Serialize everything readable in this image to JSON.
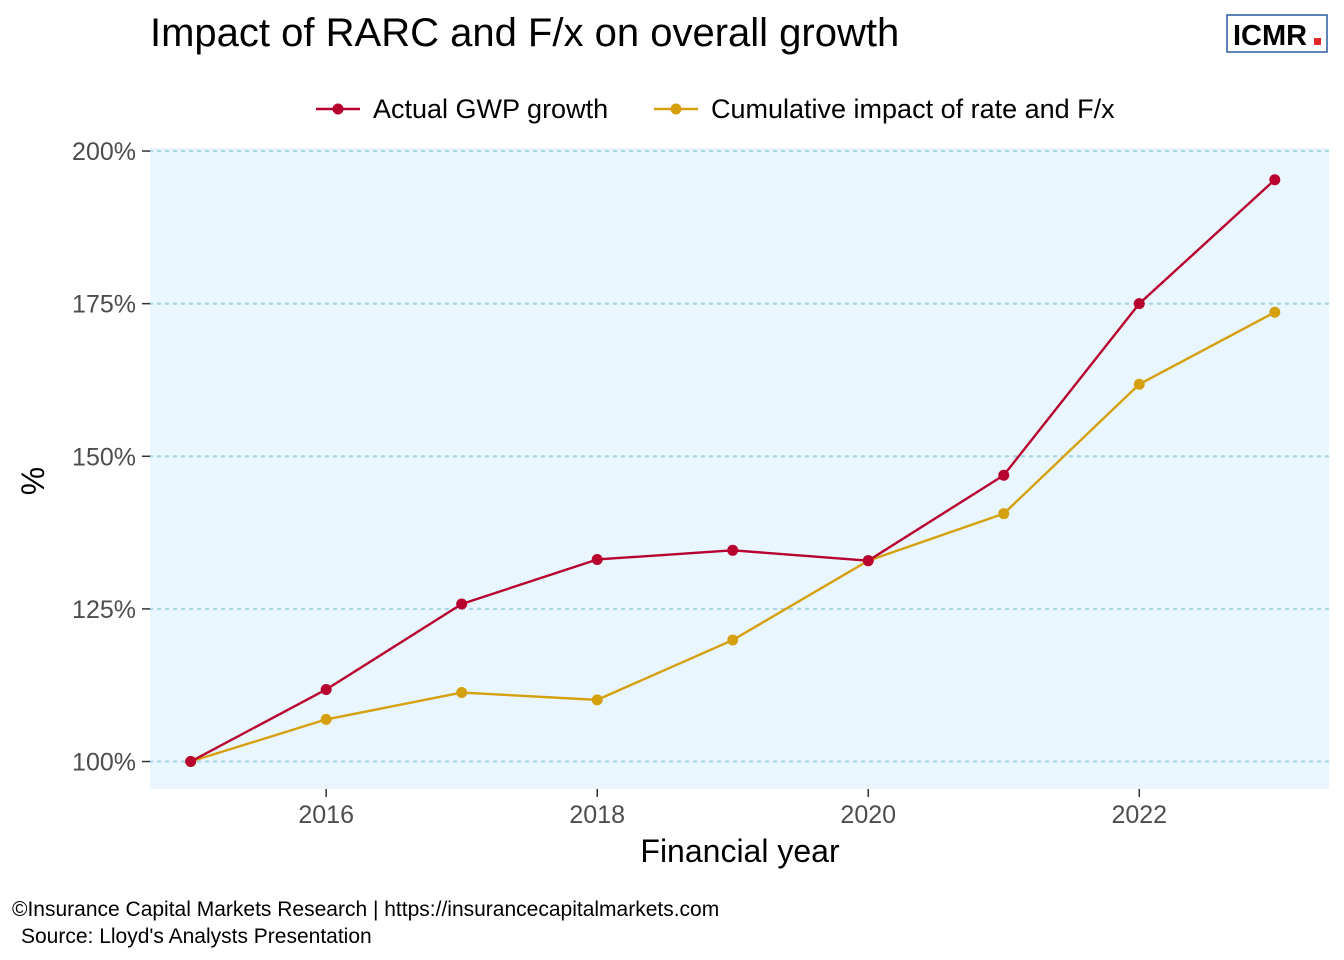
{
  "logo": {
    "text": "ICMR",
    "dot_color": "#e3262a"
  },
  "caption": {
    "line1": "©Insurance Capital Markets Research | https://insurancecapitalmarkets.com",
    "line2": "Source: Lloyd's Analysts Presentation"
  },
  "colors": {
    "panel_bg": "#eaf6fd",
    "gridline": "#a9d5e8",
    "actual": "#b8002f",
    "cumulative": "#d4a00d"
  },
  "chart_data": {
    "type": "line",
    "title": "Impact of RARC and F/x on overall growth",
    "xlabel": "Financial year",
    "ylabel": "%",
    "x": [
      2015,
      2016,
      2017,
      2018,
      2019,
      2020,
      2021,
      2022,
      2023
    ],
    "xlim": [
      2014.7,
      2023.4
    ],
    "ylim": [
      95.5,
      200.5
    ],
    "xticks": [
      2016,
      2018,
      2020,
      2022
    ],
    "yticks": [
      100,
      125,
      150,
      175,
      200
    ],
    "ytick_labels": [
      "100%",
      "125%",
      "150%",
      "175%",
      "200%"
    ],
    "grid": "horizontal dotted",
    "legend_position": "top",
    "series": [
      {
        "name": "Actual GWP growth",
        "color": "#b8002f",
        "values": [
          100,
          111.8,
          125.8,
          133.1,
          134.6,
          132.9,
          146.9,
          175.0,
          195.3
        ]
      },
      {
        "name": "Cumulative impact of rate and F/x",
        "color": "#d4a00d",
        "values": [
          100,
          106.9,
          111.3,
          110.1,
          119.9,
          132.9,
          140.6,
          161.8,
          173.6
        ]
      }
    ]
  }
}
